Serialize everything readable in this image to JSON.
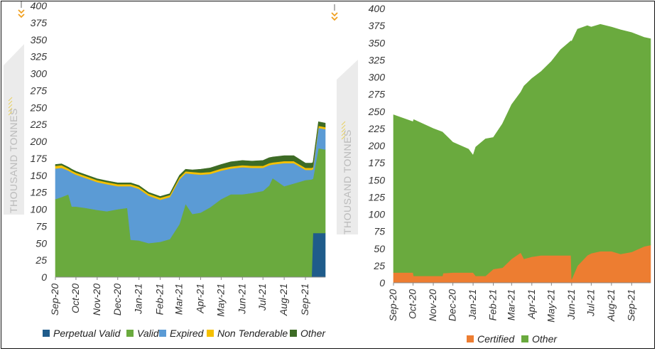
{
  "chart_data": [
    {
      "type": "area",
      "stacked": true,
      "ylabel": "THOUSAND TONNES",
      "ylim": [
        0,
        400
      ],
      "yticks": [
        0,
        25,
        50,
        75,
        100,
        125,
        150,
        175,
        200,
        225,
        250,
        275,
        300,
        325,
        350,
        375,
        400
      ],
      "xticks": [
        "Sep-20",
        "Oct-20",
        "Nov-20",
        "Dec-20",
        "Jan-21",
        "Feb-21",
        "Mar-21",
        "Apr-21",
        "May-21",
        "Jun-21",
        "Jul-21",
        "Aug-21",
        "Sep-21"
      ],
      "x": [
        "2020-09-01",
        "2020-09-10",
        "2020-09-20",
        "2020-09-25",
        "2020-10-01",
        "2020-10-15",
        "2020-11-01",
        "2020-11-15",
        "2020-12-01",
        "2020-12-15",
        "2020-12-20",
        "2021-01-01",
        "2021-01-15",
        "2021-02-01",
        "2021-02-15",
        "2021-03-01",
        "2021-03-10",
        "2021-03-20",
        "2021-04-01",
        "2021-04-15",
        "2021-05-01",
        "2021-05-15",
        "2021-06-01",
        "2021-06-15",
        "2021-07-01",
        "2021-07-10",
        "2021-07-15",
        "2021-08-01",
        "2021-08-15",
        "2021-09-01",
        "2021-09-10",
        "2021-09-12",
        "2021-09-20",
        "2021-09-30"
      ],
      "series": [
        {
          "name": "Perpetual Valid",
          "color": "#1f5c8b",
          "values": [
            0,
            0,
            0,
            0,
            0,
            0,
            0,
            0,
            0,
            0,
            0,
            0,
            0,
            0,
            0,
            0,
            0,
            0,
            0,
            0,
            0,
            0,
            0,
            0,
            0,
            0,
            0,
            0,
            0,
            0,
            0,
            65,
            65,
            65
          ]
        },
        {
          "name": "Valid",
          "color": "#6aaa3e",
          "values": [
            115,
            118,
            122,
            104,
            104,
            102,
            99,
            97,
            100,
            102,
            55,
            54,
            50,
            52,
            56,
            78,
            108,
            93,
            95,
            103,
            115,
            122,
            122,
            124,
            127,
            135,
            146,
            134,
            138,
            143,
            144,
            80,
            125,
            123
          ]
        },
        {
          "name": "Expired",
          "color": "#5b9bd5",
          "values": [
            45,
            43,
            35,
            50,
            47,
            44,
            41,
            40,
            34,
            32,
            79,
            76,
            70,
            62,
            62,
            66,
            45,
            59,
            56,
            49,
            42,
            38,
            40,
            37,
            34,
            30,
            20,
            34,
            30,
            15,
            14,
            14,
            30,
            30
          ]
        },
        {
          "name": "Non Tenderable",
          "color": "#f5c000",
          "values": [
            4,
            4,
            3,
            3,
            3,
            3,
            3,
            3,
            3,
            3,
            3,
            3,
            3,
            3,
            3,
            3,
            3,
            3,
            3,
            3,
            3,
            3,
            3,
            3,
            3,
            3,
            3,
            3,
            3,
            3,
            3,
            3,
            3,
            3
          ]
        },
        {
          "name": "Other",
          "color": "#3d6b25",
          "values": [
            2,
            2,
            2,
            2,
            2,
            2,
            2,
            2,
            2,
            2,
            2,
            2,
            2,
            2,
            2,
            3,
            3,
            3,
            5,
            6,
            6,
            7,
            7,
            7,
            8,
            8,
            8,
            8,
            8,
            7,
            7,
            7,
            6,
            6
          ]
        }
      ]
    },
    {
      "type": "area",
      "stacked": true,
      "ylabel": "THOUSAND TONNES",
      "ylim": [
        0,
        400
      ],
      "yticks": [
        0,
        25,
        50,
        75,
        100,
        125,
        150,
        175,
        200,
        225,
        250,
        275,
        300,
        325,
        350,
        375,
        400
      ],
      "xticks": [
        "Sep-20",
        "Oct-20",
        "Nov-20",
        "Dec-20",
        "Jan-21",
        "Feb-21",
        "Mar-21",
        "Apr-21",
        "May-21",
        "Jun-21",
        "Jul-21",
        "Aug-21",
        "Sep-21"
      ],
      "x": [
        "2020-09-01",
        "2020-10-01",
        "2020-10-02",
        "2020-11-01",
        "2020-11-15",
        "2020-11-16",
        "2020-12-01",
        "2020-12-25",
        "2021-01-01",
        "2021-01-05",
        "2021-01-20",
        "2021-02-01",
        "2021-02-15",
        "2021-03-01",
        "2021-03-15",
        "2021-03-20",
        "2021-04-01",
        "2021-04-15",
        "2021-05-01",
        "2021-05-15",
        "2021-05-31",
        "2021-06-01",
        "2021-06-10",
        "2021-06-25",
        "2021-07-01",
        "2021-07-15",
        "2021-08-01",
        "2021-08-15",
        "2021-09-01",
        "2021-09-20",
        "2021-09-30"
      ],
      "series": [
        {
          "name": "Certified",
          "color": "#ed7d31",
          "values": [
            15,
            15,
            10,
            10,
            10,
            14,
            15,
            15,
            15,
            10,
            10,
            20,
            22,
            35,
            44,
            35,
            38,
            40,
            40,
            40,
            40,
            5,
            25,
            40,
            43,
            46,
            46,
            42,
            45,
            53,
            55
          ]
        },
        {
          "name": "Other",
          "color": "#6aaa3e",
          "values": [
            230,
            220,
            228,
            215,
            210,
            205,
            190,
            180,
            171,
            188,
            200,
            192,
            210,
            225,
            234,
            252,
            260,
            268,
            283,
            300,
            313,
            347,
            345,
            335,
            330,
            331,
            327,
            327,
            320,
            305,
            301
          ]
        }
      ]
    }
  ]
}
